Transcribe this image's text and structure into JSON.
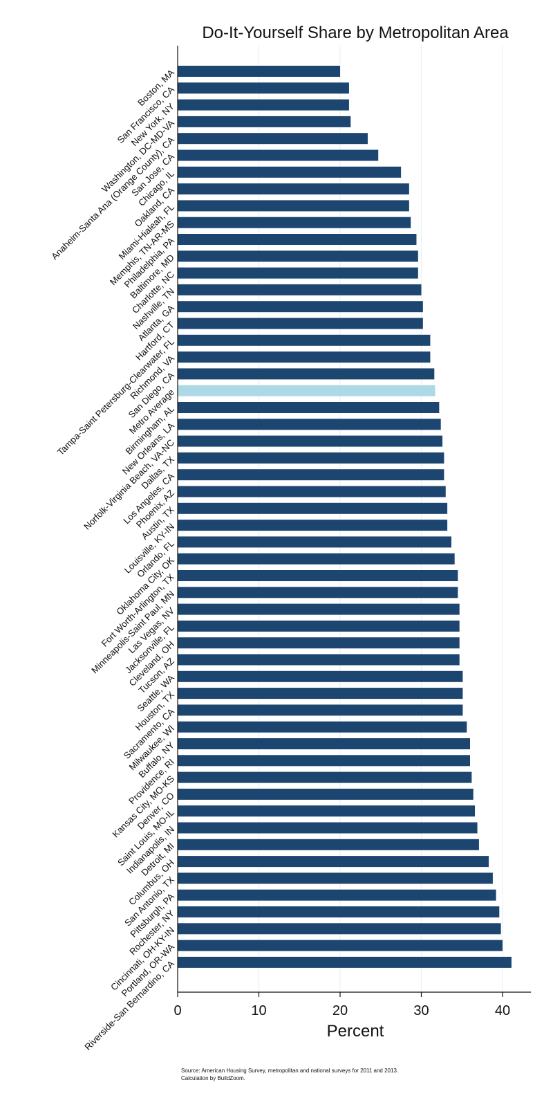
{
  "chart_data": {
    "type": "bar",
    "orientation": "horizontal",
    "title": "Do-It-Yourself Share by Metropolitan Area",
    "xlabel": "Percent",
    "ylabel": "",
    "xlim": [
      0,
      43.5
    ],
    "xticks": [
      0,
      10,
      20,
      30,
      40
    ],
    "grid": true,
    "colors": {
      "bar": "#1c4570",
      "highlight": "#add8e6",
      "grid": "#e6f2f5"
    },
    "highlight_category": "Metro Average",
    "categories": [
      "Boston, MA",
      "San Francisco, CA",
      "New York, NY",
      "Washington, DC-MD-VA",
      "Anaheim-Santa Ana (Orange County), CA",
      "San Jose, CA",
      "Chicago, IL",
      "Oakland, CA",
      "Miami-Hialeah, FL",
      "Memphis, TN-AR-MS",
      "Philadelphia, PA",
      "Baltimore, MD",
      "Charlotte, NC",
      "Nashville, TN",
      "Atlanta, GA",
      "Hartford, CT",
      "Tampa-Saint Petersburg-Clearwater, FL",
      "Richmond, VA",
      "San Diego, CA",
      "Metro Average",
      "Birmingham, AL",
      "New Orleans, LA",
      "Norfolk-Virginia Beach, VA-NC",
      "Dallas, TX",
      "Los Angeles, CA",
      "Phoenix, AZ",
      "Austin, TX",
      "Louisville, KY-IN",
      "Orlando, FL",
      "Oklahoma City, OK",
      "Fort Worth-Arlington, TX",
      "Minneapolis-Saint Paul, MN",
      "Las Vegas, NV",
      "Jacksonville, FL",
      "Cleveland, OH",
      "Tucson, AZ",
      "Seattle, WA",
      "Houston, TX",
      "Sacramento, CA",
      "Milwaukee, WI",
      "Buffalo, NY",
      "Providence, RI",
      "Kansas City, MO-KS",
      "Denver, CO",
      "Saint Louis, MO-IL",
      "Indianapolis, IN",
      "Detroit, MI",
      "Columbus, OH",
      "San Antonio, TX",
      "Pittsburgh, PA",
      "Rochester, NY",
      "Cincinnati, OH-KY-IN",
      "Portland, OR-WA",
      "Riverside-San Bernardino, CA"
    ],
    "values": [
      20.0,
      21.1,
      21.1,
      21.3,
      23.4,
      24.7,
      27.5,
      28.5,
      28.5,
      28.7,
      29.4,
      29.6,
      29.6,
      30.0,
      30.2,
      30.2,
      31.1,
      31.1,
      31.6,
      31.7,
      32.2,
      32.4,
      32.6,
      32.8,
      32.8,
      33.0,
      33.2,
      33.2,
      33.7,
      34.1,
      34.5,
      34.5,
      34.7,
      34.7,
      34.7,
      34.7,
      35.1,
      35.1,
      35.1,
      35.6,
      36.0,
      36.0,
      36.2,
      36.4,
      36.6,
      36.9,
      37.1,
      38.3,
      38.8,
      39.2,
      39.6,
      39.8,
      40.0,
      41.1
    ],
    "source": [
      "Source: American Housing Survey, metropolitan and national surveys for 2011 and 2013.",
      "Calculation by BuildZoom."
    ]
  }
}
